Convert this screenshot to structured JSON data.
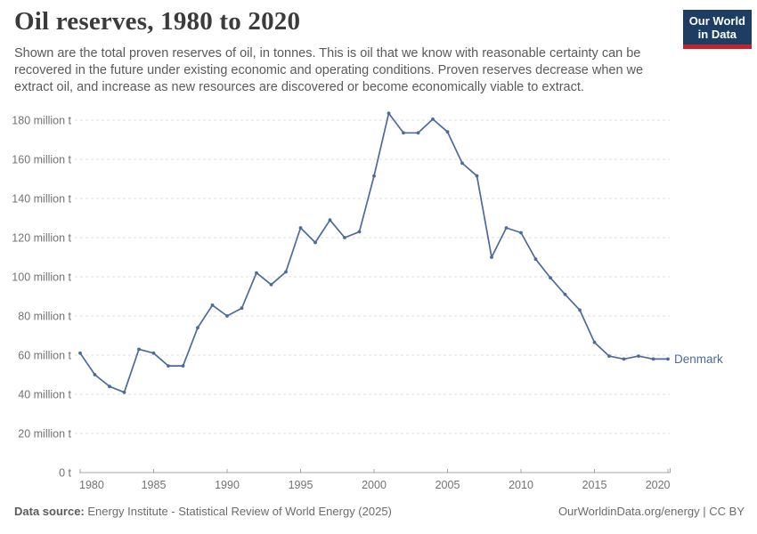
{
  "header": {
    "title": "Oil reserves, 1980 to 2020",
    "subtitle": "Shown are the total proven reserves of oil, in tonnes. This is oil that we know with reasonable certainty can be recovered in the future under existing economic and operating conditions. Proven reserves decrease when we extract oil, and increase as new resources are discovered or become economically viable to extract.",
    "logo_line1": "Our World",
    "logo_line2": "in Data"
  },
  "chart_data": {
    "type": "line",
    "title": "Oil reserves, 1980 to 2020",
    "unit": "million tonnes",
    "entity_label": "Denmark",
    "x": [
      1980,
      1981,
      1982,
      1983,
      1984,
      1985,
      1986,
      1987,
      1988,
      1989,
      1990,
      1991,
      1992,
      1993,
      1994,
      1995,
      1996,
      1997,
      1998,
      1999,
      2000,
      2001,
      2002,
      2003,
      2004,
      2005,
      2006,
      2007,
      2008,
      2009,
      2010,
      2011,
      2012,
      2013,
      2014,
      2015,
      2016,
      2017,
      2018,
      2019,
      2020
    ],
    "series": [
      {
        "name": "Denmark",
        "values": [
          61,
          50,
          44,
          41,
          63,
          61,
          54.5,
          54.5,
          74,
          85.5,
          80,
          84,
          102,
          96,
          102.5,
          125,
          117.5,
          129,
          120,
          123,
          151.5,
          183.5,
          173.5,
          173.5,
          180.5,
          174,
          158,
          151.5,
          110,
          125,
          122.5,
          109,
          99.5,
          91,
          83,
          66.5,
          59.5,
          58,
          59.5,
          58,
          58
        ]
      }
    ],
    "ylim": [
      0,
      180
    ],
    "ytick_interval": 20,
    "ytick_labels": [
      "0 t",
      "20 million t",
      "40 million t",
      "60 million t",
      "80 million t",
      "100 million t",
      "120 million t",
      "140 million t",
      "160 million t",
      "180 million t"
    ],
    "xticks": [
      1980,
      1985,
      1990,
      1995,
      2000,
      2005,
      2010,
      2015,
      2020
    ],
    "grid": "dashed horizontal",
    "legend_position": "end of line"
  },
  "footer": {
    "datasource_label": "Data source:",
    "datasource": " Energy Institute - Statistical Review of World Energy (2025)",
    "credit": "OurWorldinData.org/energy | CC BY"
  },
  "colors": {
    "line": "#4c6a9c",
    "grid": "#dddddd",
    "axis": "#a5a5a5",
    "axis_text": "#737373",
    "title_text": "#3b3b3b",
    "subtitle_text": "#5a5a5a",
    "logo_navy": "#1d3d63",
    "logo_red": "#c4232d"
  }
}
